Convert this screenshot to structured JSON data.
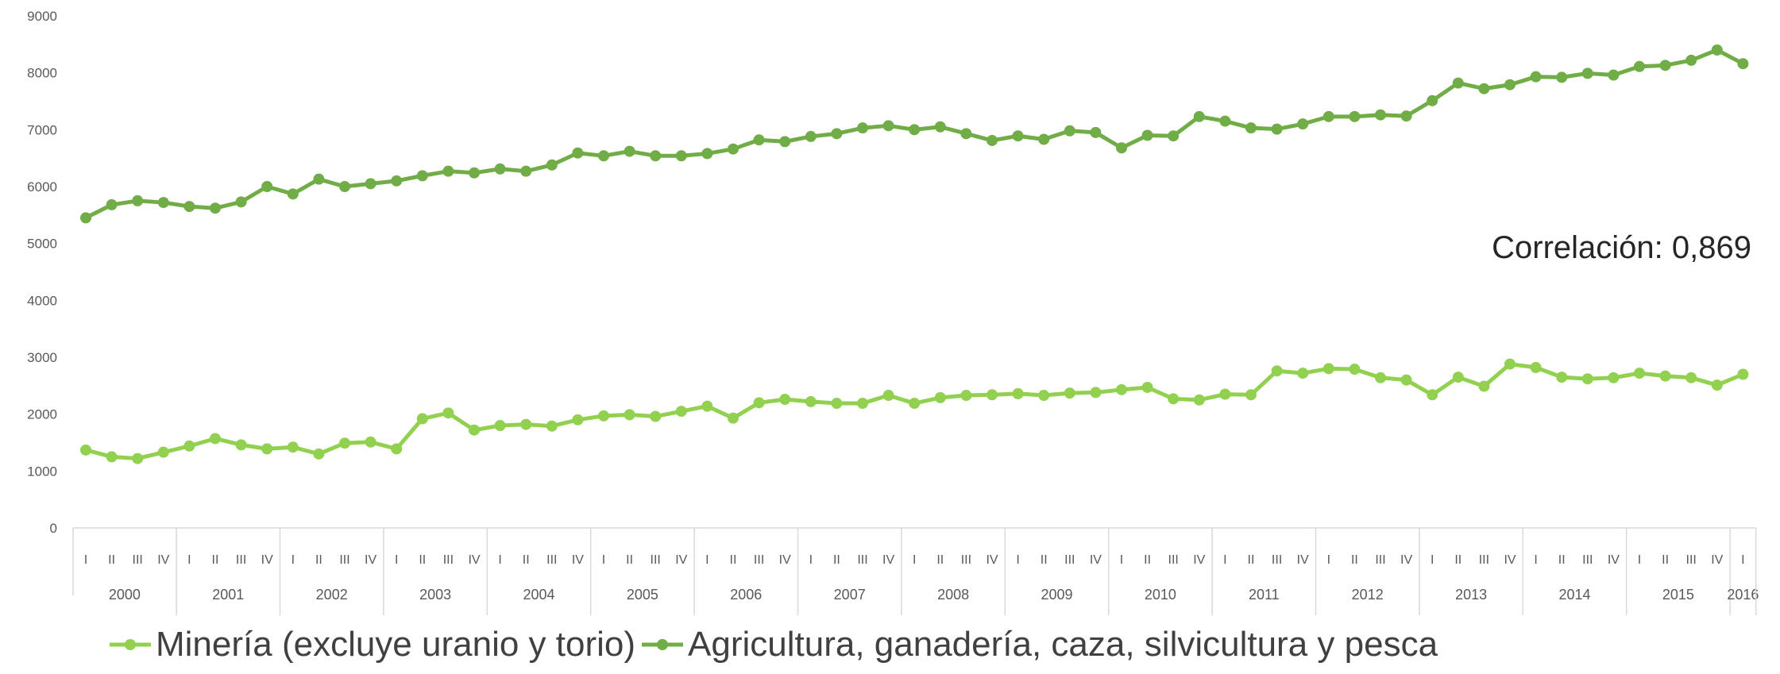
{
  "chart_data": {
    "type": "line",
    "title": "",
    "xlabel": "",
    "ylabel": "",
    "ylim": [
      0,
      9000
    ],
    "yticks": [
      "0",
      "1000",
      "2000",
      "3000",
      "4000",
      "5000",
      "6000",
      "7000",
      "8000",
      "9000"
    ],
    "quarter_labels": [
      "I",
      "II",
      "III",
      "IV"
    ],
    "years": [
      "2000",
      "2001",
      "2002",
      "2003",
      "2004",
      "2005",
      "2006",
      "2007",
      "2008",
      "2009",
      "2010",
      "2011",
      "2012",
      "2013",
      "2014",
      "2015",
      "2016"
    ],
    "x_count": 65,
    "grid": false,
    "legend_position": "bottom",
    "annotation": "Correlación: 0,869",
    "series": [
      {
        "name": "Minería (excluye uranio y torio)",
        "color": "#92d050",
        "values": [
          1370,
          1250,
          1220,
          1330,
          1440,
          1570,
          1460,
          1390,
          1420,
          1300,
          1490,
          1510,
          1390,
          1920,
          2020,
          1720,
          1800,
          1820,
          1790,
          1900,
          1970,
          1990,
          1960,
          2050,
          2140,
          1930,
          2200,
          2260,
          2220,
          2190,
          2190,
          2330,
          2190,
          2290,
          2330,
          2340,
          2360,
          2330,
          2370,
          2380,
          2430,
          2470,
          2270,
          2250,
          2350,
          2340,
          2760,
          2720,
          2800,
          2790,
          2640,
          2600,
          2340,
          2650,
          2490,
          2880,
          2820,
          2650,
          2620,
          2640,
          2720,
          2670,
          2640,
          2510,
          2700
        ]
      },
      {
        "name": "Agricultura, ganadería, caza, silvicultura y pesca",
        "color": "#70ad47",
        "values": [
          5450,
          5680,
          5750,
          5720,
          5650,
          5620,
          5730,
          6000,
          5870,
          6130,
          6000,
          6050,
          6100,
          6190,
          6270,
          6240,
          6310,
          6270,
          6380,
          6590,
          6540,
          6620,
          6540,
          6540,
          6580,
          6660,
          6820,
          6790,
          6880,
          6930,
          7030,
          7070,
          7000,
          7050,
          6930,
          6810,
          6890,
          6830,
          6980,
          6950,
          6680,
          6900,
          6890,
          7230,
          7150,
          7030,
          7010,
          7100,
          7230,
          7230,
          7260,
          7240,
          7510,
          7820,
          7720,
          7790,
          7930,
          7920,
          7990,
          7960,
          8110,
          8130,
          8220,
          8400,
          8160
        ]
      }
    ]
  }
}
